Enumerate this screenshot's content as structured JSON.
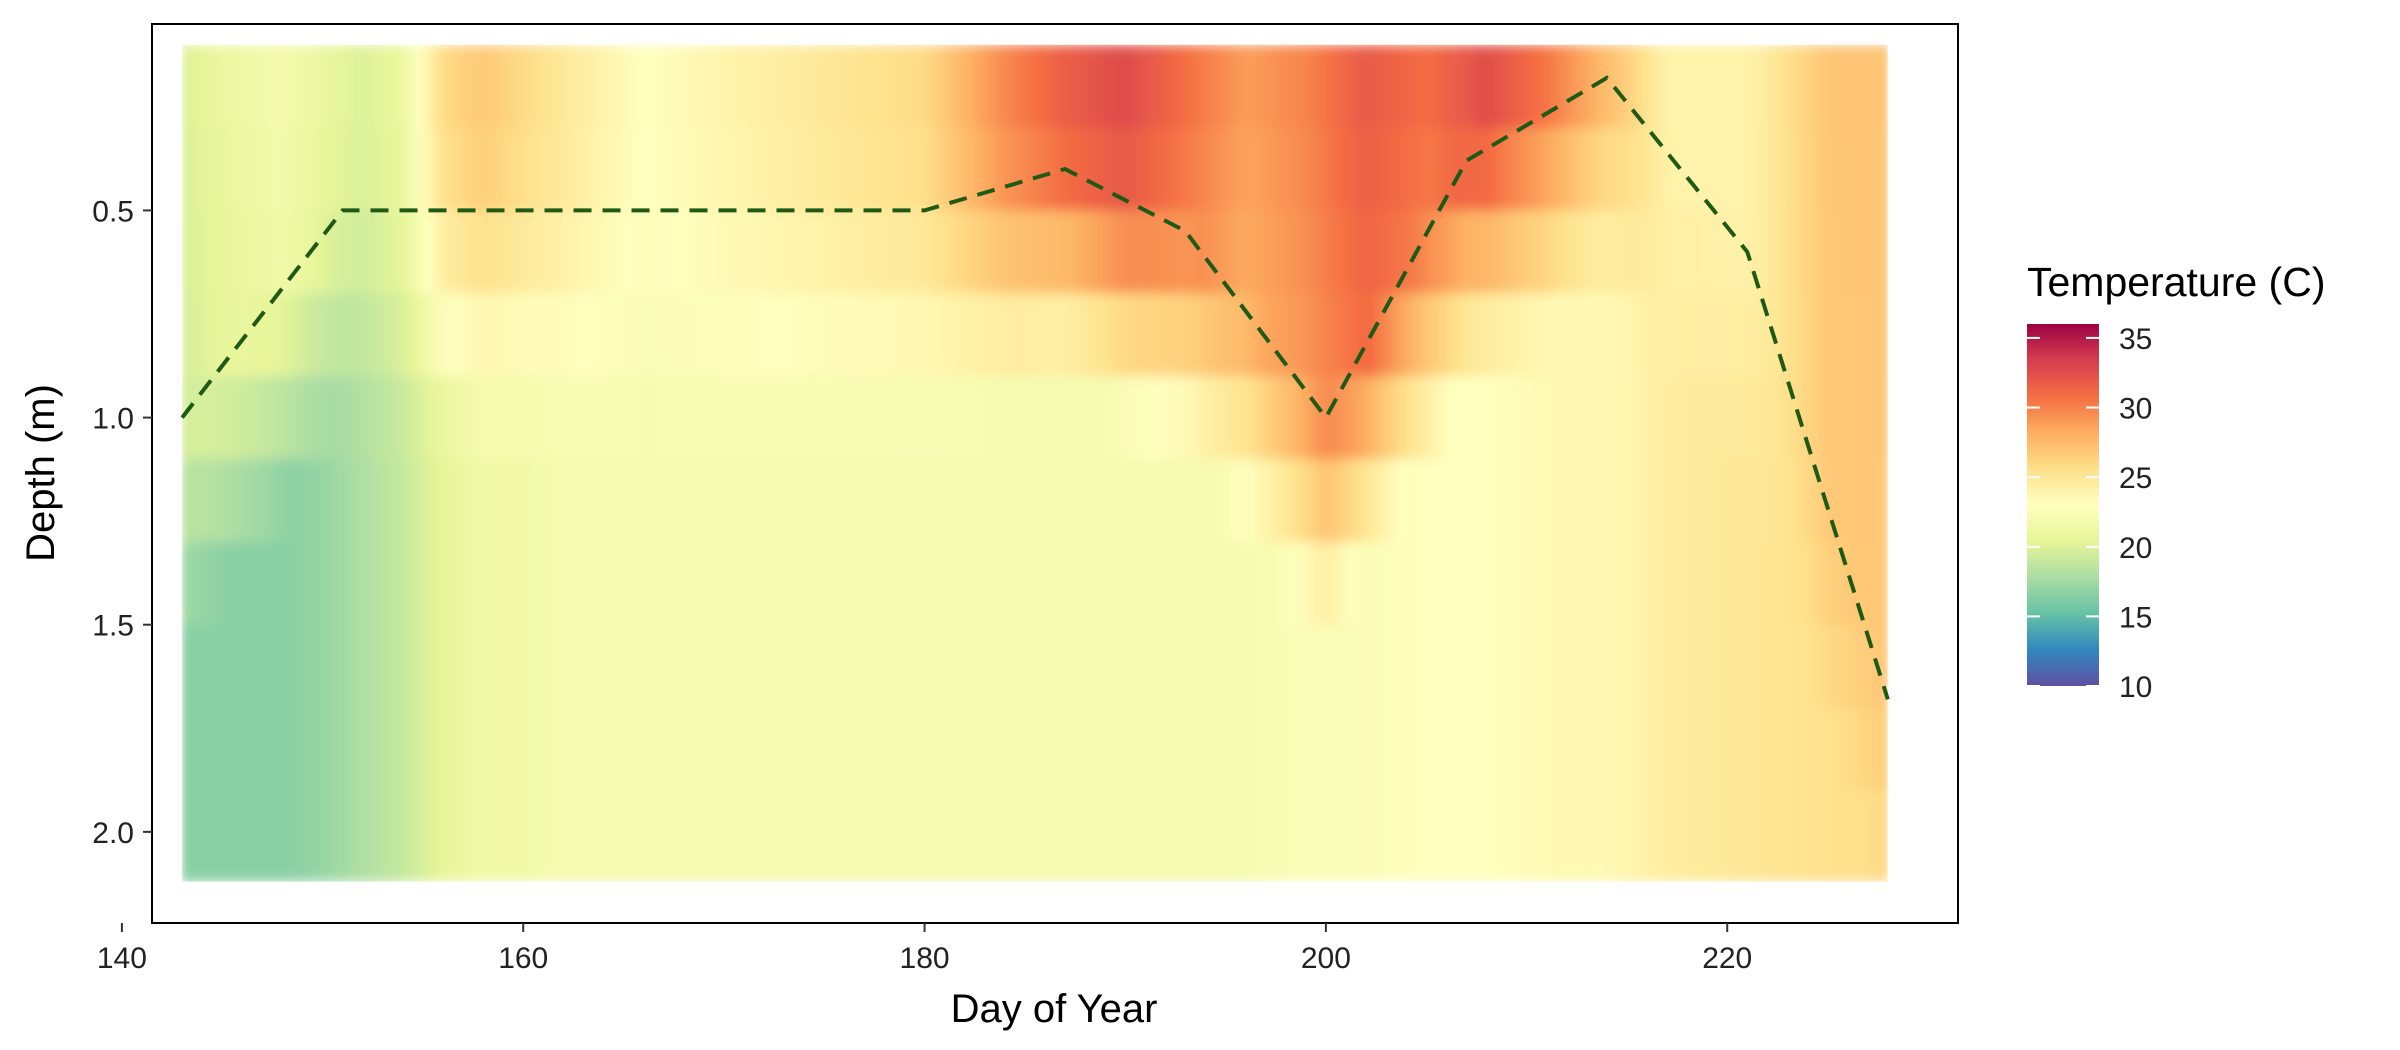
{
  "chart_data": {
    "type": "heatmap",
    "title": "",
    "xlabel": "Day of Year",
    "ylabel": "Depth (m)",
    "xlim": [
      141.5,
      231.5
    ],
    "ylim_reversed": [
      0.05,
      2.22
    ],
    "x_data_extent": [
      143,
      228
    ],
    "y_data_extent": [
      0.1,
      2.12
    ],
    "x_ticks": [
      {
        "value": 140,
        "label": "140"
      },
      {
        "value": 160,
        "label": "160"
      },
      {
        "value": 180,
        "label": "180"
      },
      {
        "value": 200,
        "label": "200"
      },
      {
        "value": 220,
        "label": "220"
      }
    ],
    "y_ticks": [
      {
        "value": 0.5,
        "label": "0.5"
      },
      {
        "value": 1.0,
        "label": "1.0"
      },
      {
        "value": 1.5,
        "label": "1.5"
      },
      {
        "value": 2.0,
        "label": "2.0"
      }
    ],
    "grid": false,
    "colorbar": {
      "title": "Temperature (C)",
      "placement": "right",
      "range": [
        10,
        36
      ],
      "ticks": [
        {
          "value": 10,
          "label": "10"
        },
        {
          "value": 15,
          "label": "15"
        },
        {
          "value": 20,
          "label": "20"
        },
        {
          "value": 25,
          "label": "25"
        },
        {
          "value": 30,
          "label": "30"
        },
        {
          "value": 35,
          "label": "35"
        }
      ],
      "palette": [
        "#5E4FA2",
        "#3288BD",
        "#66C2A5",
        "#ABDDA4",
        "#E6F598",
        "#FFFFBF",
        "#FEE08B",
        "#FDAE61",
        "#F46D43",
        "#D53E4F",
        "#9E0142"
      ],
      "palette_stops": [
        10,
        12.6,
        15.2,
        17.8,
        20.4,
        23,
        25.6,
        28.2,
        30.8,
        33.4,
        36
      ]
    },
    "temperature_profile": {
      "depths": [
        0.1,
        0.3,
        0.5,
        0.7,
        0.9,
        1.1,
        1.3,
        1.5,
        1.7,
        1.9,
        2.12
      ],
      "days": [
        143,
        145,
        148,
        150,
        152,
        154,
        156,
        158,
        160,
        162,
        164,
        166,
        170,
        175,
        180,
        184,
        187,
        190,
        193,
        196,
        199,
        202,
        205,
        208,
        211,
        214,
        217,
        221,
        225,
        228
      ],
      "surface_temp": [
        20,
        21,
        22,
        21,
        20,
        21,
        26,
        27,
        26,
        25,
        24,
        23,
        24,
        25,
        26,
        30,
        32,
        33,
        31,
        29,
        30,
        32,
        31,
        33,
        31,
        28,
        24,
        24,
        27,
        27
      ],
      "bottom_temp": [
        16.5,
        16.5,
        16.5,
        17,
        18,
        19,
        20.5,
        21.5,
        21.5,
        22,
        22,
        22,
        22,
        22,
        22,
        22,
        22,
        22,
        22,
        22,
        22.5,
        22.5,
        23,
        23,
        23.5,
        23.5,
        24.5,
        25,
        25.5,
        25.5
      ]
    },
    "series": [
      {
        "name": "",
        "style": "dashed",
        "color": "#1F5A14",
        "points": [
          {
            "x": 143,
            "y": 1.0
          },
          {
            "x": 151,
            "y": 0.5
          },
          {
            "x": 180,
            "y": 0.5
          },
          {
            "x": 187,
            "y": 0.4
          },
          {
            "x": 193,
            "y": 0.55
          },
          {
            "x": 200,
            "y": 1.0
          },
          {
            "x": 207,
            "y": 0.38
          },
          {
            "x": 214,
            "y": 0.18
          },
          {
            "x": 221,
            "y": 0.6
          },
          {
            "x": 228,
            "y": 1.68
          }
        ]
      }
    ]
  }
}
